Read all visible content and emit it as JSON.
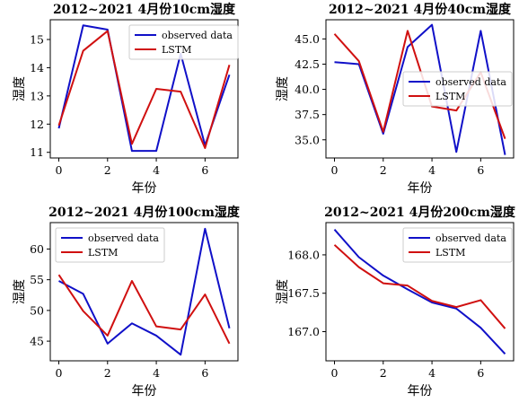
{
  "chart_data": [
    {
      "type": "line",
      "title": "2012~2021 4月份10cm湿度",
      "xlabel": "年份",
      "ylabel": "湿度",
      "x": [
        0,
        1,
        2,
        3,
        4,
        5,
        6,
        7
      ],
      "xticks": [
        0,
        2,
        4,
        6
      ],
      "xlim": [
        -0.35,
        7.35
      ],
      "yticks": [
        11,
        12,
        13,
        14,
        15
      ],
      "ytick_labels": [
        "11",
        "12",
        "13",
        "14",
        "15"
      ],
      "ylim": [
        10.8,
        15.7
      ],
      "legend": "top-right",
      "grid": false,
      "series": [
        {
          "name": "observed data",
          "color": "#1010c8",
          "values": [
            11.85,
            15.5,
            15.35,
            11.05,
            11.05,
            14.5,
            11.25,
            13.75
          ]
        },
        {
          "name": "LSTM",
          "color": "#d01010",
          "values": [
            11.95,
            14.6,
            15.3,
            11.3,
            13.25,
            13.15,
            11.15,
            14.1
          ]
        }
      ]
    },
    {
      "type": "line",
      "title": "2012~2021 4月份40cm湿度",
      "xlabel": "年份",
      "ylabel": "湿度",
      "x": [
        0,
        1,
        2,
        3,
        4,
        5,
        6,
        7
      ],
      "xticks": [
        0,
        2,
        4,
        6
      ],
      "xlim": [
        -0.35,
        7.35
      ],
      "yticks": [
        35.0,
        37.5,
        40.0,
        42.5,
        45.0
      ],
      "ytick_labels": [
        "35.0",
        "37.5",
        "40.0",
        "42.5",
        "45.0"
      ],
      "ylim": [
        33.2,
        46.9
      ],
      "legend": "center-right",
      "grid": false,
      "series": [
        {
          "name": "observed data",
          "color": "#1010c8",
          "values": [
            42.7,
            42.5,
            35.6,
            44.2,
            46.4,
            33.8,
            45.8,
            33.5
          ]
        },
        {
          "name": "LSTM",
          "color": "#d01010",
          "values": [
            45.5,
            42.8,
            35.8,
            45.8,
            38.3,
            37.9,
            41.7,
            35.1
          ]
        }
      ]
    },
    {
      "type": "line",
      "title": "2012~2021 4月份100cm湿度",
      "xlabel": "年份",
      "ylabel": "湿度",
      "x": [
        0,
        1,
        2,
        3,
        4,
        5,
        6,
        7
      ],
      "xticks": [
        0,
        2,
        4,
        6
      ],
      "xlim": [
        -0.35,
        7.35
      ],
      "yticks": [
        45,
        50,
        55,
        60
      ],
      "ytick_labels": [
        "45",
        "50",
        "55",
        "60"
      ],
      "ylim": [
        41.8,
        64.3
      ],
      "legend": "top-left",
      "grid": false,
      "series": [
        {
          "name": "observed data",
          "color": "#1010c8",
          "values": [
            54.8,
            52.7,
            44.6,
            47.9,
            45.9,
            42.8,
            63.3,
            47.1
          ]
        },
        {
          "name": "LSTM",
          "color": "#d01010",
          "values": [
            55.8,
            49.9,
            45.9,
            54.8,
            47.4,
            46.9,
            52.6,
            44.6
          ]
        }
      ]
    },
    {
      "type": "line",
      "title": "2012~2021 4月份200cm湿度",
      "xlabel": "年份",
      "ylabel": "湿度",
      "x": [
        0,
        1,
        2,
        3,
        4,
        5,
        6,
        7
      ],
      "xticks": [
        0,
        2,
        4,
        6
      ],
      "xlim": [
        -0.35,
        7.35
      ],
      "yticks": [
        167.0,
        167.5,
        168.0
      ],
      "ytick_labels": [
        "167.0",
        "167.5",
        "168.0"
      ],
      "ylim": [
        166.62,
        168.42
      ],
      "legend": "top-right",
      "grid": false,
      "series": [
        {
          "name": "observed data",
          "color": "#1010c8",
          "values": [
            168.33,
            167.97,
            167.73,
            167.55,
            167.38,
            167.3,
            167.05,
            166.71
          ]
        },
        {
          "name": "LSTM",
          "color": "#d01010",
          "values": [
            168.13,
            167.84,
            167.63,
            167.6,
            167.4,
            167.32,
            167.41,
            167.04
          ]
        }
      ]
    }
  ]
}
